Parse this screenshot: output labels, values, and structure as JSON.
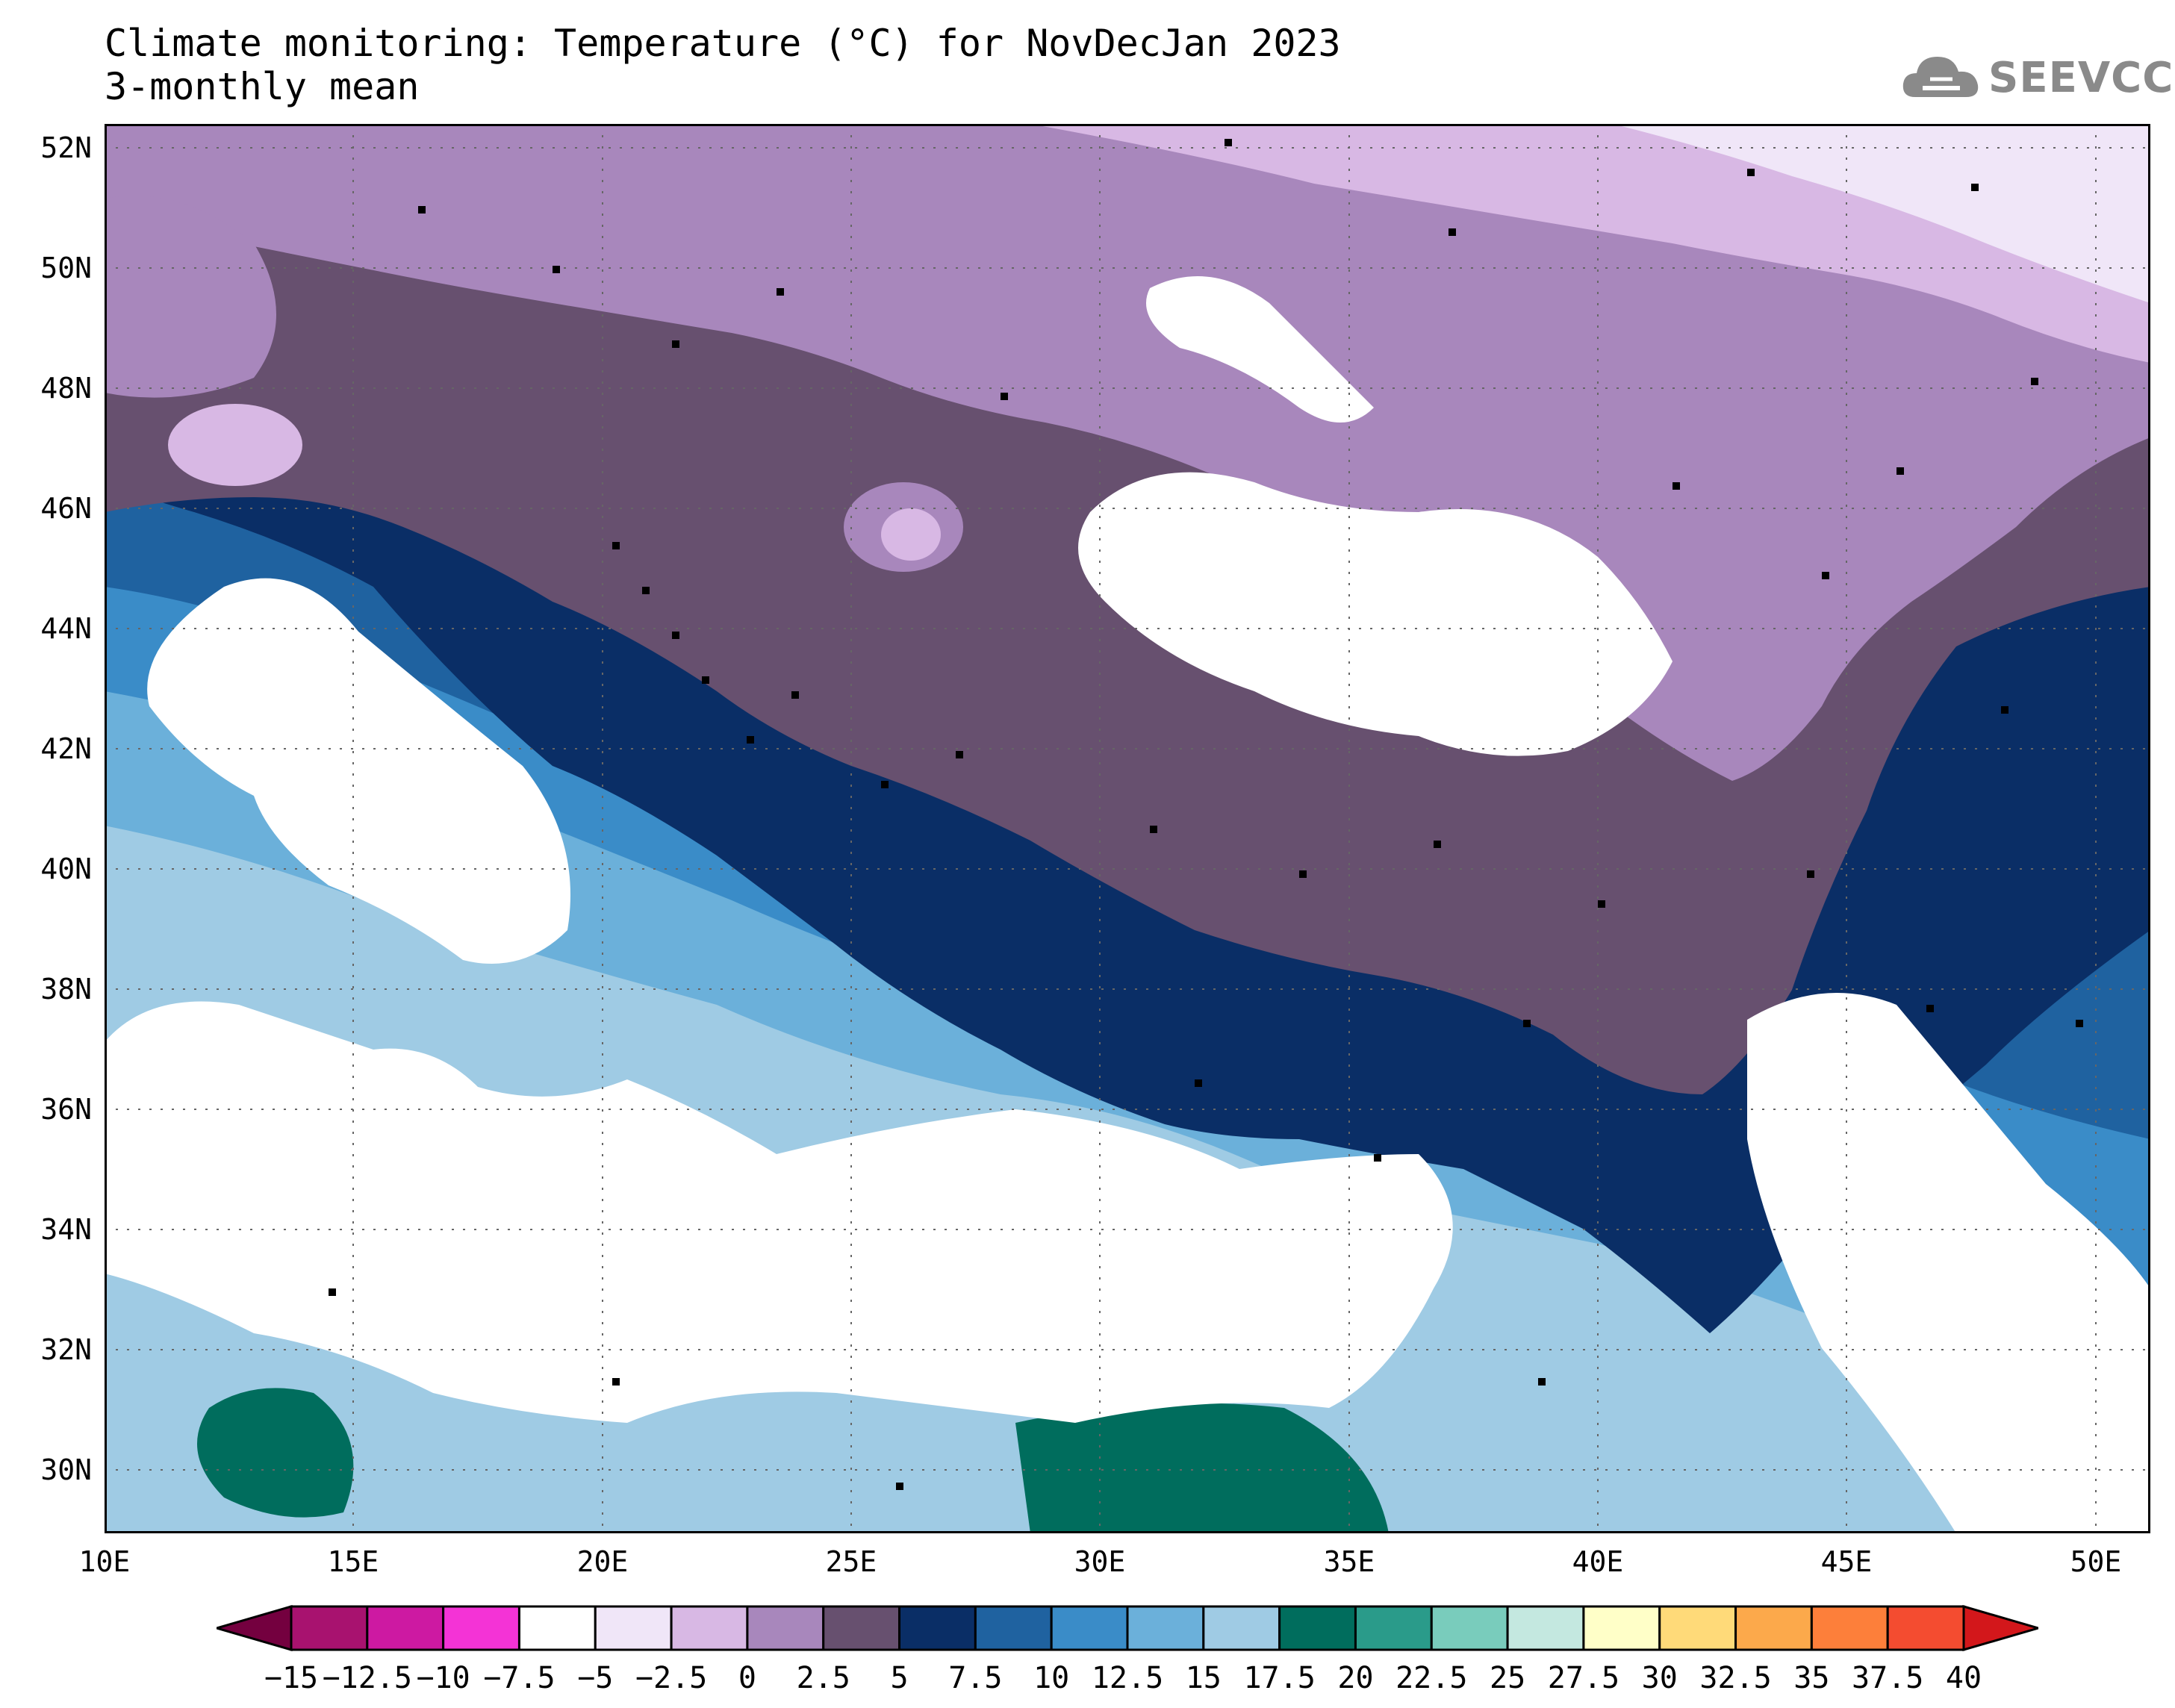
{
  "title_line1": "Climate monitoring: Temperature (°C) for NovDecJan 2023",
  "title_line2": "3-monthly mean",
  "logo_text": "SEEVCCC",
  "map": {
    "lon_range": [
      10,
      51
    ],
    "lat_range": [
      29,
      52.5
    ],
    "lat_labels": [
      "52N",
      "50N",
      "48N",
      "46N",
      "44N",
      "42N",
      "40N",
      "38N",
      "36N",
      "34N",
      "32N",
      "30N"
    ],
    "lon_labels": [
      "10E",
      "15E",
      "20E",
      "25E",
      "30E",
      "35E",
      "40E",
      "45E",
      "50E"
    ]
  },
  "colorbar": {
    "labels": [
      "-15",
      "-12.5",
      "-10",
      "-7.5",
      "-5",
      "-2.5",
      "0",
      "2.5",
      "5",
      "7.5",
      "10",
      "12.5",
      "15",
      "17.5",
      "20",
      "22.5",
      "25",
      "27.5",
      "30",
      "32.5",
      "35",
      "37.5",
      "40"
    ],
    "colors": [
      "#74003f",
      "#a8126f",
      "#cd19a2",
      "#f433d6",
      "#ffffff",
      "#f0e6f8",
      "#d8b8e4",
      "#a887bc",
      "#67506f",
      "#0a2e66",
      "#1f62a0",
      "#3a8cc8",
      "#6bb0da",
      "#9fcbe4",
      "#006d5d",
      "#2a9b8a",
      "#79ccbc",
      "#c4e8e0",
      "#ffffc8",
      "#ffda79",
      "#fca94b",
      "#fd7f3a",
      "#f44c30",
      "#d3171b"
    ]
  }
}
